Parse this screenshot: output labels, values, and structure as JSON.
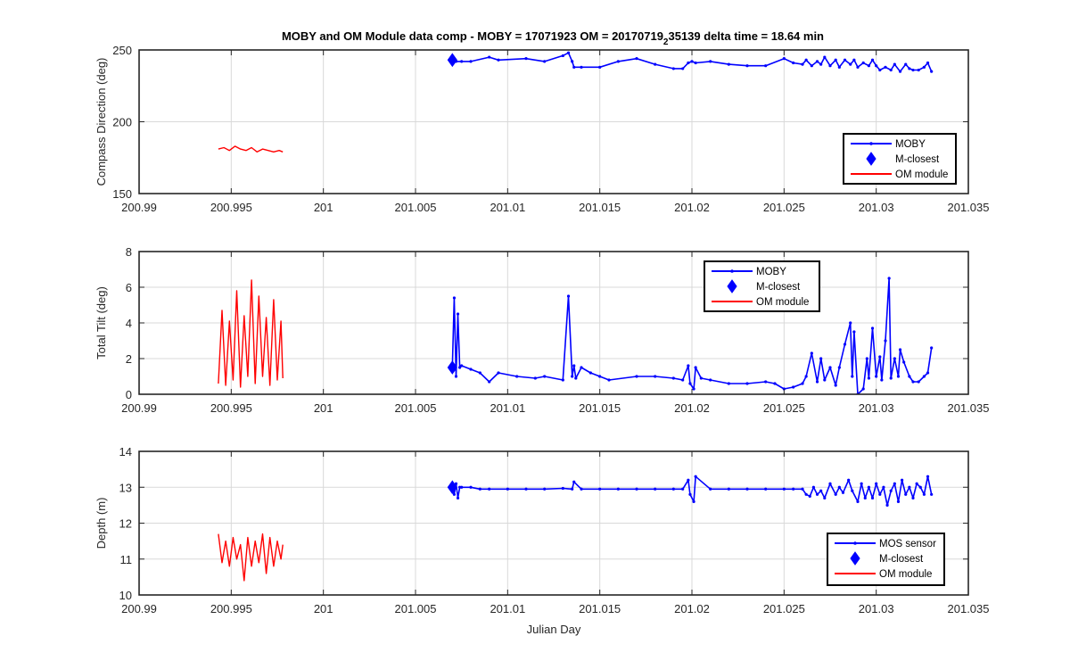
{
  "figure": {
    "title_main": "MOBY and OM Module data comp - MOBY = 17071923 OM = 20170719",
    "title_sub": "2",
    "title_tail": "35139 delta time = 18.64 min"
  },
  "colors": {
    "moby": "#0000ff",
    "om": "#ff0000",
    "grid": "#d9d9d9",
    "axis": "#262626"
  },
  "chart_data": [
    {
      "type": "line",
      "ylabel": "Compass Direction (deg)",
      "xlabel": "",
      "xlim": [
        200.99,
        201.035
      ],
      "ylim": [
        150,
        250
      ],
      "xticks": [
        200.99,
        200.995,
        201,
        201.005,
        201.01,
        201.015,
        201.02,
        201.025,
        201.03,
        201.035
      ],
      "xtick_labels": [
        "200.99",
        "200.995",
        "201",
        "201.005",
        "201.01",
        "201.015",
        "201.02",
        "201.025",
        "201.03",
        "201.035"
      ],
      "yticks": [
        150,
        200,
        250
      ],
      "ytick_labels": [
        "150",
        "200",
        "250"
      ],
      "grid": true,
      "legend_position": "lower-right",
      "series": [
        {
          "name": "MOBY",
          "style": "line-dots",
          "x": [
            201.007,
            201.0072,
            201.0075,
            201.008,
            201.009,
            201.0095,
            201.011,
            201.012,
            201.013,
            201.0133,
            201.0135,
            201.0136,
            201.014,
            201.015,
            201.016,
            201.017,
            201.018,
            201.019,
            201.0195,
            201.0198,
            201.02,
            201.0202,
            201.021,
            201.022,
            201.023,
            201.024,
            201.025,
            201.0255,
            201.026,
            201.0262,
            201.0265,
            201.0268,
            201.027,
            201.0272,
            201.0275,
            201.0278,
            201.028,
            201.0283,
            201.0286,
            201.0288,
            201.029,
            201.0293,
            201.0296,
            201.0298,
            201.03,
            201.0302,
            201.0305,
            201.0308,
            201.031,
            201.0313,
            201.0316,
            201.0318,
            201.032,
            201.0323,
            201.0326,
            201.0328,
            201.033
          ],
          "y": [
            243,
            242,
            242,
            242,
            245,
            243,
            244,
            242,
            246,
            248,
            242,
            238,
            238,
            238,
            242,
            244,
            240,
            237,
            237,
            241,
            242,
            241,
            242,
            240,
            239,
            239,
            244,
            241,
            240,
            243,
            239,
            242,
            240,
            245,
            239,
            243,
            238,
            243,
            240,
            243,
            238,
            241,
            239,
            243,
            239,
            236,
            238,
            236,
            240,
            235,
            240,
            237,
            236,
            236,
            238,
            241,
            235
          ]
        },
        {
          "name": "M-closest",
          "style": "diamond",
          "x": [
            201.007
          ],
          "y": [
            243
          ]
        },
        {
          "name": "OM module",
          "style": "line",
          "x": [
            200.9943,
            200.9946,
            200.9949,
            200.9952,
            200.9955,
            200.9958,
            200.9961,
            200.9964,
            200.9967,
            200.997,
            200.9973,
            200.9976,
            200.9978
          ],
          "y": [
            181,
            182,
            180,
            183,
            181,
            180,
            182,
            179,
            181,
            180,
            179,
            180,
            179
          ]
        }
      ]
    },
    {
      "type": "line",
      "ylabel": "Total Tilt (deg)",
      "xlabel": "",
      "xlim": [
        200.99,
        201.035
      ],
      "ylim": [
        0,
        8
      ],
      "xticks": [
        200.99,
        200.995,
        201,
        201.005,
        201.01,
        201.015,
        201.02,
        201.025,
        201.03,
        201.035
      ],
      "xtick_labels": [
        "200.99",
        "200.995",
        "201",
        "201.005",
        "201.01",
        "201.015",
        "201.02",
        "201.025",
        "201.03",
        "201.035"
      ],
      "yticks": [
        0,
        2,
        4,
        6,
        8
      ],
      "ytick_labels": [
        "0",
        "2",
        "4",
        "6",
        "8"
      ],
      "grid": true,
      "legend_position": "top-center",
      "series": [
        {
          "name": "MOBY",
          "style": "line-dots",
          "x": [
            201.007,
            201.0071,
            201.0072,
            201.0073,
            201.0074,
            201.0075,
            201.008,
            201.0085,
            201.009,
            201.0095,
            201.0105,
            201.0115,
            201.012,
            201.013,
            201.0133,
            201.0135,
            201.0136,
            201.0137,
            201.014,
            201.0145,
            201.015,
            201.0155,
            201.017,
            201.018,
            201.019,
            201.0195,
            201.0198,
            201.0199,
            201.0201,
            201.0202,
            201.0205,
            201.021,
            201.022,
            201.023,
            201.024,
            201.0245,
            201.025,
            201.0255,
            201.026,
            201.0262,
            201.0265,
            201.0268,
            201.027,
            201.0272,
            201.0275,
            201.0278,
            201.028,
            201.0283,
            201.0286,
            201.0287,
            201.0288,
            201.029,
            201.0293,
            201.0295,
            201.0296,
            201.0298,
            201.03,
            201.0302,
            201.0303,
            201.0305,
            201.0307,
            201.0308,
            201.031,
            201.0312,
            201.0313,
            201.0315,
            201.0318,
            201.032,
            201.0323,
            201.0326,
            201.0328,
            201.033
          ],
          "y": [
            1.5,
            5.4,
            1.0,
            4.5,
            1.5,
            1.6,
            1.4,
            1.2,
            0.7,
            1.2,
            1.0,
            0.9,
            1.0,
            0.8,
            5.5,
            1.0,
            1.6,
            0.9,
            1.5,
            1.2,
            1.0,
            0.8,
            1.0,
            1.0,
            0.9,
            0.8,
            1.6,
            0.6,
            0.3,
            1.5,
            0.9,
            0.8,
            0.6,
            0.6,
            0.7,
            0.6,
            0.3,
            0.4,
            0.6,
            1.0,
            2.3,
            0.7,
            2.0,
            0.8,
            1.5,
            0.5,
            1.5,
            2.8,
            4.0,
            1.0,
            3.5,
            0.0,
            0.3,
            2.0,
            0.9,
            3.7,
            1.0,
            2.1,
            0.8,
            3.0,
            6.5,
            0.9,
            2.0,
            1.0,
            2.5,
            1.8,
            1.0,
            0.7,
            0.7,
            1.0,
            1.2,
            2.6
          ]
        },
        {
          "name": "M-closest",
          "style": "diamond",
          "x": [
            201.007
          ],
          "y": [
            1.5
          ]
        },
        {
          "name": "OM module",
          "style": "line",
          "x": [
            200.9943,
            200.9945,
            200.9947,
            200.9949,
            200.9951,
            200.9953,
            200.9955,
            200.9957,
            200.9959,
            200.9961,
            200.9963,
            200.9965,
            200.9967,
            200.9969,
            200.9971,
            200.9973,
            200.9975,
            200.9977,
            200.9978
          ],
          "y": [
            0.6,
            4.7,
            0.5,
            4.1,
            0.8,
            5.8,
            0.4,
            4.4,
            1.0,
            6.4,
            0.6,
            5.5,
            1.0,
            4.3,
            0.5,
            5.3,
            0.8,
            4.1,
            0.9
          ]
        }
      ]
    },
    {
      "type": "line",
      "ylabel": "Depth (m)",
      "xlabel": "Julian Day",
      "xlim": [
        200.99,
        201.035
      ],
      "ylim": [
        10,
        14
      ],
      "xticks": [
        200.99,
        200.995,
        201,
        201.005,
        201.01,
        201.015,
        201.02,
        201.025,
        201.03,
        201.035
      ],
      "xtick_labels": [
        "200.99",
        "200.995",
        "201",
        "201.005",
        "201.01",
        "201.015",
        "201.02",
        "201.025",
        "201.03",
        "201.035"
      ],
      "yticks": [
        10,
        11,
        12,
        13,
        14
      ],
      "ytick_labels": [
        "10",
        "11",
        "12",
        "13",
        "14"
      ],
      "grid": true,
      "legend_position": "lower-right",
      "series": [
        {
          "name": "MOS sensor",
          "style": "line-dots",
          "x": [
            201.007,
            201.0071,
            201.0072,
            201.0073,
            201.0074,
            201.0075,
            201.008,
            201.0085,
            201.009,
            201.01,
            201.011,
            201.012,
            201.013,
            201.0135,
            201.0136,
            201.014,
            201.015,
            201.016,
            201.017,
            201.018,
            201.019,
            201.0195,
            201.0198,
            201.0199,
            201.0201,
            201.0202,
            201.021,
            201.022,
            201.023,
            201.024,
            201.025,
            201.0255,
            201.026,
            201.0262,
            201.0264,
            201.0266,
            201.0268,
            201.027,
            201.0272,
            201.0275,
            201.0278,
            201.028,
            201.0282,
            201.0285,
            201.0287,
            201.029,
            201.0292,
            201.0294,
            201.0296,
            201.0298,
            201.03,
            201.0302,
            201.0304,
            201.0306,
            201.0308,
            201.031,
            201.0312,
            201.0314,
            201.0316,
            201.0318,
            201.032,
            201.0322,
            201.0324,
            201.0326,
            201.0328,
            201.033
          ],
          "y": [
            13.0,
            12.8,
            13.1,
            12.7,
            13.0,
            13.0,
            13.0,
            12.95,
            12.95,
            12.95,
            12.95,
            12.95,
            12.97,
            12.95,
            13.15,
            12.95,
            12.95,
            12.95,
            12.95,
            12.95,
            12.95,
            12.95,
            13.2,
            12.8,
            12.6,
            13.3,
            12.95,
            12.95,
            12.95,
            12.95,
            12.95,
            12.95,
            12.95,
            12.8,
            12.75,
            13.0,
            12.8,
            12.9,
            12.7,
            13.1,
            12.8,
            13.0,
            12.85,
            13.2,
            12.9,
            12.6,
            13.1,
            12.7,
            13.0,
            12.7,
            13.1,
            12.8,
            13.0,
            12.5,
            12.9,
            13.1,
            12.6,
            13.2,
            12.8,
            13.0,
            12.7,
            13.1,
            13.0,
            12.8,
            13.3,
            12.8
          ]
        },
        {
          "name": "M-closest",
          "style": "diamond",
          "x": [
            201.007
          ],
          "y": [
            13.0
          ]
        },
        {
          "name": "OM module",
          "style": "line",
          "x": [
            200.9943,
            200.9945,
            200.9947,
            200.9949,
            200.9951,
            200.9953,
            200.9955,
            200.9957,
            200.9959,
            200.9961,
            200.9963,
            200.9965,
            200.9967,
            200.9969,
            200.9971,
            200.9973,
            200.9975,
            200.9977,
            200.9978
          ],
          "y": [
            11.7,
            10.9,
            11.5,
            10.8,
            11.6,
            11.0,
            11.4,
            10.4,
            11.6,
            10.8,
            11.5,
            10.9,
            11.7,
            10.6,
            11.6,
            10.8,
            11.5,
            11.0,
            11.4
          ]
        }
      ]
    }
  ]
}
